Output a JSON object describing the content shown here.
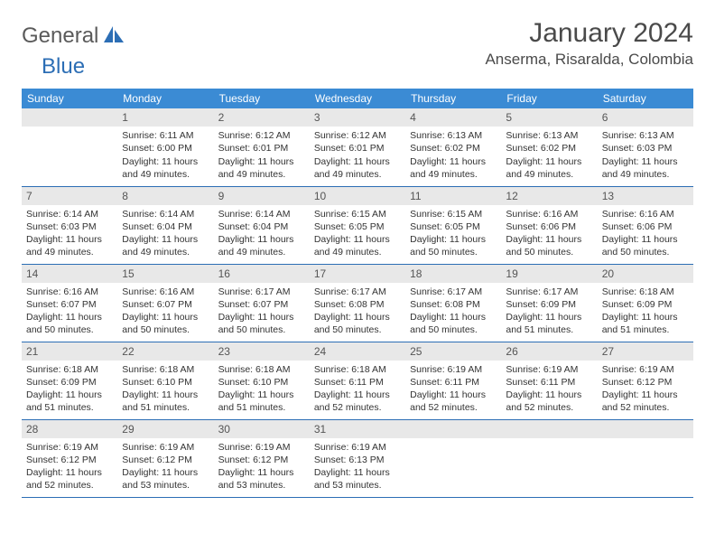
{
  "logo": {
    "word1": "General",
    "word2": "Blue"
  },
  "title": "January 2024",
  "location": "Anserma, Risaralda, Colombia",
  "day_headers": [
    "Sunday",
    "Monday",
    "Tuesday",
    "Wednesday",
    "Thursday",
    "Friday",
    "Saturday"
  ],
  "colors": {
    "header_bg": "#3b8bd4",
    "accent": "#2c6eb5",
    "daynum_bg": "#e8e8e8",
    "text": "#333333"
  },
  "start_offset": 1,
  "days": [
    {
      "n": "1",
      "sr": "6:11 AM",
      "ss": "6:00 PM",
      "dl": "11 hours and 49 minutes."
    },
    {
      "n": "2",
      "sr": "6:12 AM",
      "ss": "6:01 PM",
      "dl": "11 hours and 49 minutes."
    },
    {
      "n": "3",
      "sr": "6:12 AM",
      "ss": "6:01 PM",
      "dl": "11 hours and 49 minutes."
    },
    {
      "n": "4",
      "sr": "6:13 AM",
      "ss": "6:02 PM",
      "dl": "11 hours and 49 minutes."
    },
    {
      "n": "5",
      "sr": "6:13 AM",
      "ss": "6:02 PM",
      "dl": "11 hours and 49 minutes."
    },
    {
      "n": "6",
      "sr": "6:13 AM",
      "ss": "6:03 PM",
      "dl": "11 hours and 49 minutes."
    },
    {
      "n": "7",
      "sr": "6:14 AM",
      "ss": "6:03 PM",
      "dl": "11 hours and 49 minutes."
    },
    {
      "n": "8",
      "sr": "6:14 AM",
      "ss": "6:04 PM",
      "dl": "11 hours and 49 minutes."
    },
    {
      "n": "9",
      "sr": "6:14 AM",
      "ss": "6:04 PM",
      "dl": "11 hours and 49 minutes."
    },
    {
      "n": "10",
      "sr": "6:15 AM",
      "ss": "6:05 PM",
      "dl": "11 hours and 49 minutes."
    },
    {
      "n": "11",
      "sr": "6:15 AM",
      "ss": "6:05 PM",
      "dl": "11 hours and 50 minutes."
    },
    {
      "n": "12",
      "sr": "6:16 AM",
      "ss": "6:06 PM",
      "dl": "11 hours and 50 minutes."
    },
    {
      "n": "13",
      "sr": "6:16 AM",
      "ss": "6:06 PM",
      "dl": "11 hours and 50 minutes."
    },
    {
      "n": "14",
      "sr": "6:16 AM",
      "ss": "6:07 PM",
      "dl": "11 hours and 50 minutes."
    },
    {
      "n": "15",
      "sr": "6:16 AM",
      "ss": "6:07 PM",
      "dl": "11 hours and 50 minutes."
    },
    {
      "n": "16",
      "sr": "6:17 AM",
      "ss": "6:07 PM",
      "dl": "11 hours and 50 minutes."
    },
    {
      "n": "17",
      "sr": "6:17 AM",
      "ss": "6:08 PM",
      "dl": "11 hours and 50 minutes."
    },
    {
      "n": "18",
      "sr": "6:17 AM",
      "ss": "6:08 PM",
      "dl": "11 hours and 50 minutes."
    },
    {
      "n": "19",
      "sr": "6:17 AM",
      "ss": "6:09 PM",
      "dl": "11 hours and 51 minutes."
    },
    {
      "n": "20",
      "sr": "6:18 AM",
      "ss": "6:09 PM",
      "dl": "11 hours and 51 minutes."
    },
    {
      "n": "21",
      "sr": "6:18 AM",
      "ss": "6:09 PM",
      "dl": "11 hours and 51 minutes."
    },
    {
      "n": "22",
      "sr": "6:18 AM",
      "ss": "6:10 PM",
      "dl": "11 hours and 51 minutes."
    },
    {
      "n": "23",
      "sr": "6:18 AM",
      "ss": "6:10 PM",
      "dl": "11 hours and 51 minutes."
    },
    {
      "n": "24",
      "sr": "6:18 AM",
      "ss": "6:11 PM",
      "dl": "11 hours and 52 minutes."
    },
    {
      "n": "25",
      "sr": "6:19 AM",
      "ss": "6:11 PM",
      "dl": "11 hours and 52 minutes."
    },
    {
      "n": "26",
      "sr": "6:19 AM",
      "ss": "6:11 PM",
      "dl": "11 hours and 52 minutes."
    },
    {
      "n": "27",
      "sr": "6:19 AM",
      "ss": "6:12 PM",
      "dl": "11 hours and 52 minutes."
    },
    {
      "n": "28",
      "sr": "6:19 AM",
      "ss": "6:12 PM",
      "dl": "11 hours and 52 minutes."
    },
    {
      "n": "29",
      "sr": "6:19 AM",
      "ss": "6:12 PM",
      "dl": "11 hours and 53 minutes."
    },
    {
      "n": "30",
      "sr": "6:19 AM",
      "ss": "6:12 PM",
      "dl": "11 hours and 53 minutes."
    },
    {
      "n": "31",
      "sr": "6:19 AM",
      "ss": "6:13 PM",
      "dl": "11 hours and 53 minutes."
    }
  ],
  "labels": {
    "sunrise": "Sunrise:",
    "sunset": "Sunset:",
    "daylight": "Daylight:"
  }
}
